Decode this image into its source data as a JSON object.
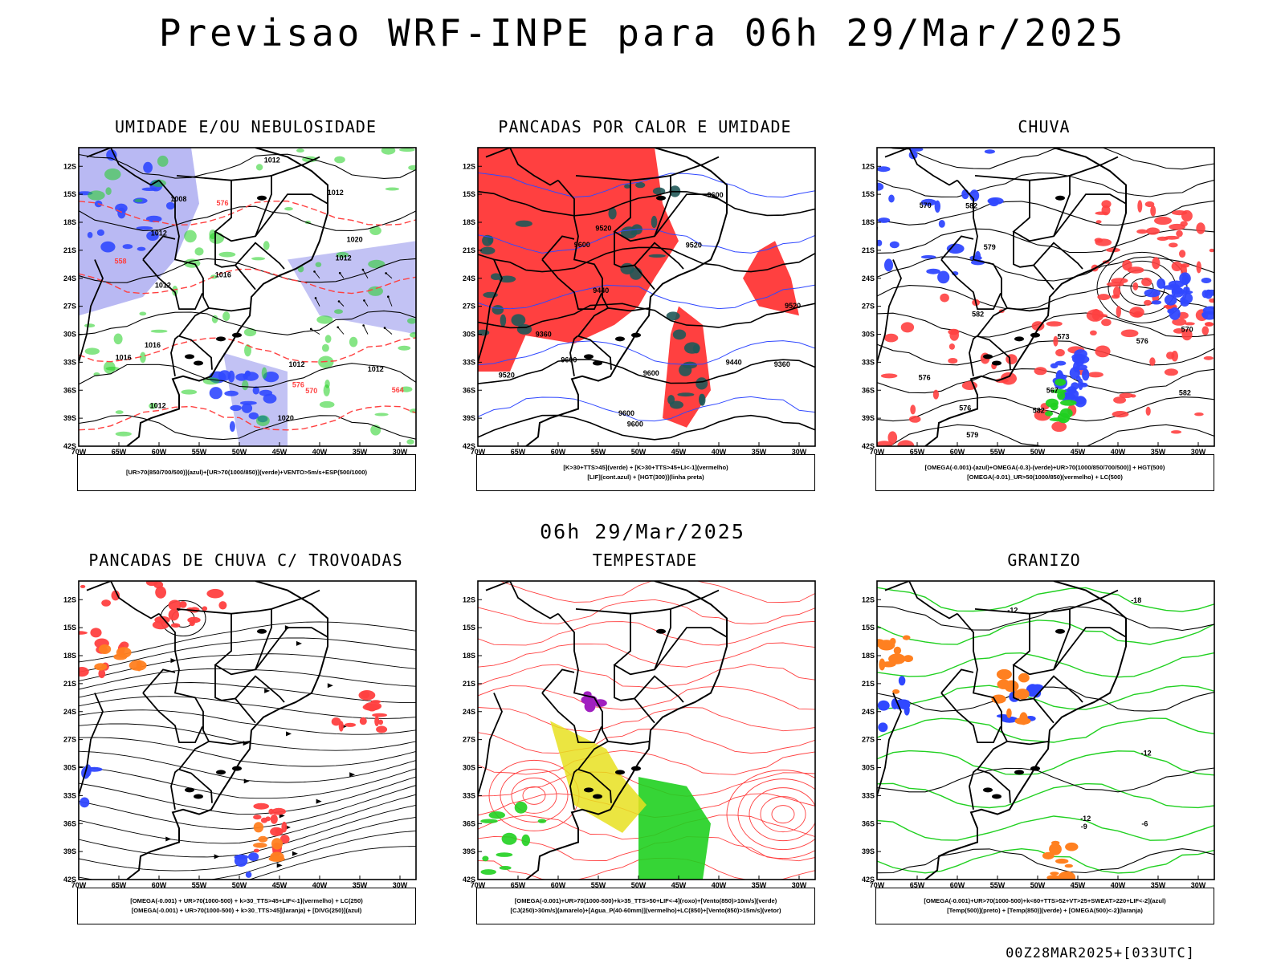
{
  "main_title": "Previsao WRF-INPE  para 06h 29/Mar/2025",
  "mid_title": "06h 29/Mar/2025",
  "footer": "00Z28MAR2025+[033UTC]",
  "colors": {
    "blue": "#3048ff",
    "green": "#20d020",
    "red": "#ff4040",
    "lavender": "#a8a8f0",
    "teal": "#205858",
    "yellow": "#e8e020",
    "orange": "#ff8020",
    "purple": "#a020c0"
  },
  "chart_data": [
    {
      "type": "map",
      "title": "UMIDADE E/OU NEBULOSIDADE",
      "x_ticks": [
        "70W",
        "65W",
        "60W",
        "55W",
        "50W",
        "45W",
        "40W",
        "35W",
        "30W"
      ],
      "y_ticks": [
        "12S",
        "15S",
        "18S",
        "21S",
        "24S",
        "27S",
        "30S",
        "33S",
        "36S",
        "39S",
        "42S"
      ],
      "xlim": [
        -70,
        -28
      ],
      "ylim": [
        -42,
        -10
      ],
      "legend": [
        "[UR>70(850/700/500)](azul)+[UR>70(1000/850)](verde)+VENTO>5m/s+ESP(500/1000)"
      ],
      "contour_labels": [
        "1012",
        "1012",
        "1016",
        "1012",
        "1020",
        "1012",
        "1016",
        "1012",
        "1012",
        "1016",
        "1020",
        "1008",
        "1012",
        "1012",
        "576",
        "576",
        "570",
        "564",
        "558"
      ]
    },
    {
      "type": "map",
      "title": "PANCADAS POR CALOR E UMIDADE",
      "x_ticks": [
        "70W",
        "65W",
        "60W",
        "55W",
        "50W",
        "45W",
        "40W",
        "35W",
        "30W"
      ],
      "y_ticks": [
        "12S",
        "15S",
        "18S",
        "21S",
        "24S",
        "27S",
        "30S",
        "33S",
        "36S",
        "39S",
        "42S"
      ],
      "xlim": [
        -70,
        -28
      ],
      "ylim": [
        -42,
        -10
      ],
      "legend": [
        "[K>30+TTS>45](verde) + [K>30+TTS>45+LI<-1](vermelho)",
        "[LIF](cont.azul) + [HGT(300)](linha preta)"
      ],
      "contour_labels": [
        "9600",
        "9600",
        "9520",
        "9600",
        "9600",
        "9600",
        "9520",
        "9600",
        "9520",
        "9520",
        "9440",
        "9440",
        "9360",
        "9360"
      ]
    },
    {
      "type": "map",
      "title": "CHUVA",
      "x_ticks": [
        "70W",
        "65W",
        "60W",
        "55W",
        "50W",
        "45W",
        "40W",
        "35W",
        "30W"
      ],
      "y_ticks": [
        "12S",
        "15S",
        "18S",
        "21S",
        "24S",
        "27S",
        "30S",
        "33S",
        "36S",
        "39S",
        "42S"
      ],
      "xlim": [
        -70,
        -28
      ],
      "ylim": [
        -42,
        -10
      ],
      "legend": [
        "[OMEGA(-0.001)-(azul)+OMEGA(-0.3)-(verde)+UR>70(1000/850/700/500)] + HGT(500)",
        "[OMEGA(-0.01)_UR>50(1000/850)(vermelho) + LC(500)"
      ],
      "contour_labels": [
        "582",
        "582",
        "582",
        "579",
        "576",
        "576",
        "573",
        "570",
        "570",
        "567",
        "576",
        "579",
        "582"
      ]
    },
    {
      "type": "map",
      "title": "PANCADAS DE CHUVA C/ TROVOADAS",
      "x_ticks": [
        "70W",
        "65W",
        "60W",
        "55W",
        "50W",
        "45W",
        "40W",
        "35W",
        "30W"
      ],
      "y_ticks": [
        "12S",
        "15S",
        "18S",
        "21S",
        "24S",
        "27S",
        "30S",
        "33S",
        "36S",
        "39S",
        "42S"
      ],
      "xlim": [
        -70,
        -28
      ],
      "ylim": [
        -42,
        -10
      ],
      "legend": [
        "[OMEGA(-0.001) + UR>70(1000-500) + k>30_TTS>45+LIF<-1](vermelho) + LC(250)",
        "[OMEGA(-0.001) + UR>70(1000-500) + k>30_TTS>45](laranja) + [DIVG(250)](azul)"
      ]
    },
    {
      "type": "map",
      "title": "TEMPESTADE",
      "x_ticks": [
        "70W",
        "65W",
        "60W",
        "55W",
        "50W",
        "45W",
        "40W",
        "35W",
        "30W"
      ],
      "y_ticks": [
        "12S",
        "15S",
        "18S",
        "21S",
        "24S",
        "27S",
        "30S",
        "33S",
        "36S",
        "39S",
        "42S"
      ],
      "xlim": [
        -70,
        -28
      ],
      "ylim": [
        -42,
        -10
      ],
      "legend": [
        "[OMEGA(-0.001)+UR>70(1000-500)+k>35_TTS>50+LIF<-4](roxo)+[Vento(850)>10m/s](verde)",
        "[CJ(250)>30m/s](amarelo)+[Agua_P(40-60mm)](vermelho)+LC(850)+[Vento(850)>15m/s](vetor)"
      ]
    },
    {
      "type": "map",
      "title": "GRANIZO",
      "x_ticks": [
        "70W",
        "65W",
        "60W",
        "55W",
        "50W",
        "45W",
        "40W",
        "35W",
        "30W"
      ],
      "y_ticks": [
        "12S",
        "15S",
        "18S",
        "21S",
        "24S",
        "27S",
        "30S",
        "33S",
        "36S",
        "39S",
        "42S"
      ],
      "xlim": [
        -70,
        -28
      ],
      "ylim": [
        -42,
        -10
      ],
      "legend": [
        "[OMEGA(-0.001)+UR>70(1000-500)+k<60+TTS>52+VT>25+SWEAT>220+LIF<-2](azul)",
        "[Temp(500)](preto) + [Temp(850)](verde) + [OMEGA(500)<-2](laranja)"
      ],
      "contour_labels": [
        "-12",
        "-12",
        "-18",
        "-12",
        "-9",
        "-6"
      ]
    }
  ]
}
